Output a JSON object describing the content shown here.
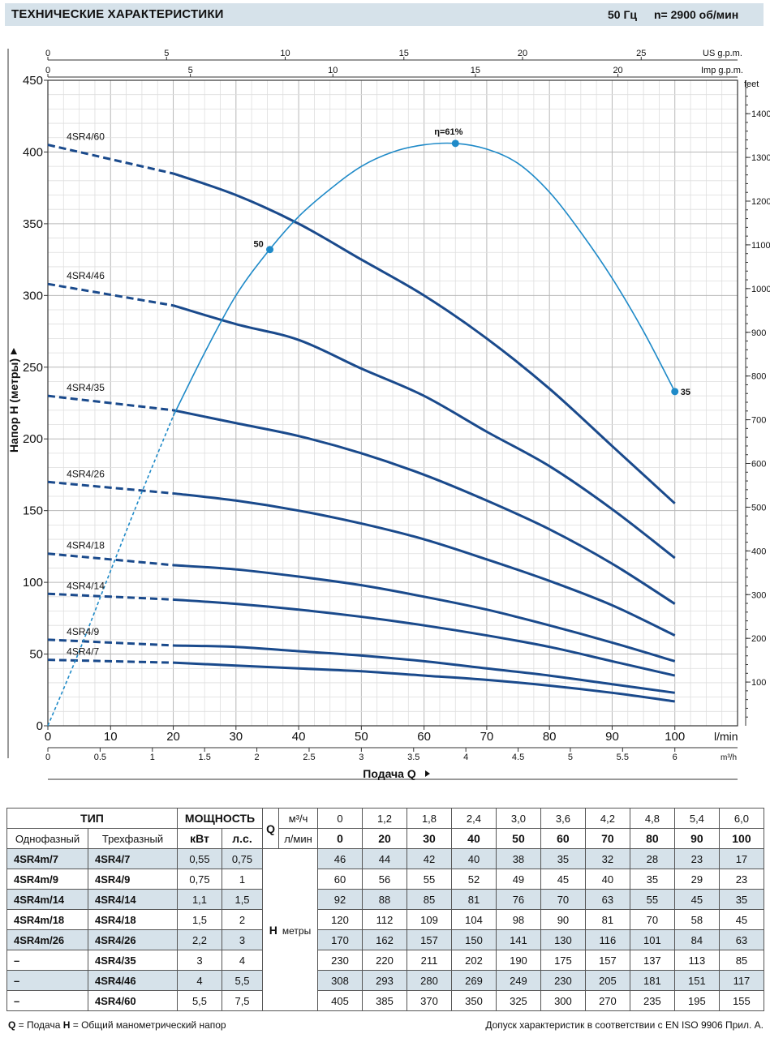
{
  "header": {
    "title": "ТЕХНИЧЕСКИЕ ХАРАКТЕРИСТИКИ",
    "frequency": "50 Гц",
    "speed": "n= 2900 об/мин"
  },
  "chart_data": {
    "type": "line",
    "xlabel": "Подача Q",
    "ylabel": "Напор H (метры)",
    "x_unit": "l/min",
    "x_unit_m3h": "m³/h",
    "right_unit": "feet",
    "us_unit": "US g.p.m.",
    "imp_unit": "Imp g.p.m.",
    "xlim": [
      0,
      110
    ],
    "ylim": [
      0,
      450
    ],
    "x_ticks": [
      0,
      10,
      20,
      30,
      40,
      50,
      60,
      70,
      80,
      90,
      100
    ],
    "y_ticks": [
      0,
      50,
      100,
      150,
      200,
      250,
      300,
      350,
      400,
      450
    ],
    "m3h_ticks": [
      "0",
      "0.5",
      "1",
      "1.5",
      "2",
      "2.5",
      "3",
      "3.5",
      "4",
      "4.5",
      "5",
      "5.5",
      "6"
    ],
    "feet_ticks": [
      "100",
      "200",
      "300",
      "400",
      "500",
      "600",
      "700",
      "800",
      "900",
      "1000",
      "1100",
      "1200",
      "1300",
      "1400"
    ],
    "us_ticks": [
      "0",
      "5",
      "10",
      "15",
      "20",
      "25"
    ],
    "imp_ticks": [
      "0",
      "5",
      "10",
      "15",
      "20"
    ],
    "x": [
      0,
      20,
      30,
      40,
      50,
      60,
      70,
      80,
      90,
      100
    ],
    "series": [
      {
        "name": "4SR4/60",
        "values": [
          405,
          385,
          370,
          350,
          325,
          300,
          270,
          235,
          195,
          155
        ]
      },
      {
        "name": "4SR4/46",
        "values": [
          308,
          293,
          280,
          269,
          249,
          230,
          205,
          181,
          151,
          117
        ]
      },
      {
        "name": "4SR4/35",
        "values": [
          230,
          220,
          211,
          202,
          190,
          175,
          157,
          137,
          113,
          85
        ]
      },
      {
        "name": "4SR4/26",
        "values": [
          170,
          162,
          157,
          150,
          141,
          130,
          116,
          101,
          84,
          63
        ]
      },
      {
        "name": "4SR4/18",
        "values": [
          120,
          112,
          109,
          104,
          98,
          90,
          81,
          70,
          58,
          45
        ]
      },
      {
        "name": "4SR4/14",
        "values": [
          92,
          88,
          85,
          81,
          76,
          70,
          63,
          55,
          45,
          35
        ]
      },
      {
        "name": "4SR4/9",
        "values": [
          60,
          56,
          55,
          52,
          49,
          45,
          40,
          35,
          29,
          23
        ]
      },
      {
        "name": "4SR4/7",
        "values": [
          46,
          44,
          42,
          40,
          38,
          35,
          32,
          28,
          23,
          17
        ]
      }
    ],
    "efficiency": {
      "labels": {
        "peak": "η=61%",
        "left": "50",
        "right": "35"
      },
      "markers": [
        {
          "x": 35.4,
          "y": 332
        },
        {
          "x": 65,
          "y": 406
        },
        {
          "x": 100,
          "y": 233
        }
      ],
      "curve_x": [
        0,
        5,
        10,
        15,
        20,
        25,
        30,
        35,
        40,
        45,
        50,
        55,
        60,
        65,
        70,
        75,
        80,
        85,
        90,
        95,
        100
      ],
      "curve_y": [
        0,
        52,
        108,
        163,
        216,
        260,
        300,
        330,
        355,
        374,
        390,
        400,
        405,
        406,
        402,
        392,
        372,
        344,
        312,
        275,
        233
      ]
    }
  },
  "table": {
    "type_label": "ТИП",
    "power_label": "МОЩНОСТЬ",
    "single_phase_label": "Однофазный",
    "three_phase_label": "Трехфазный",
    "kw_label": "кВт",
    "hp_label": "л.с.",
    "q_label": "Q",
    "q_m3h_label": "м³/ч",
    "q_lmin_label": "л/мин",
    "h_label": "H",
    "h_unit_label": "метры",
    "q_m3h": [
      "0",
      "1,2",
      "1,8",
      "2,4",
      "3,0",
      "3,6",
      "4,2",
      "4,8",
      "5,4",
      "6,0"
    ],
    "q_lmin": [
      "0",
      "20",
      "30",
      "40",
      "50",
      "60",
      "70",
      "80",
      "90",
      "100"
    ],
    "rows": [
      {
        "single": "4SR4m/7",
        "three": "4SR4/7",
        "kw": "0,55",
        "hp": "0,75",
        "h": [
          "46",
          "44",
          "42",
          "40",
          "38",
          "35",
          "32",
          "28",
          "23",
          "17"
        ]
      },
      {
        "single": "4SR4m/9",
        "three": "4SR4/9",
        "kw": "0,75",
        "hp": "1",
        "h": [
          "60",
          "56",
          "55",
          "52",
          "49",
          "45",
          "40",
          "35",
          "29",
          "23"
        ]
      },
      {
        "single": "4SR4m/14",
        "three": "4SR4/14",
        "kw": "1,1",
        "hp": "1,5",
        "h": [
          "92",
          "88",
          "85",
          "81",
          "76",
          "70",
          "63",
          "55",
          "45",
          "35"
        ]
      },
      {
        "single": "4SR4m/18",
        "three": "4SR4/18",
        "kw": "1,5",
        "hp": "2",
        "h": [
          "120",
          "112",
          "109",
          "104",
          "98",
          "90",
          "81",
          "70",
          "58",
          "45"
        ]
      },
      {
        "single": "4SR4m/26",
        "three": "4SR4/26",
        "kw": "2,2",
        "hp": "3",
        "h": [
          "170",
          "162",
          "157",
          "150",
          "141",
          "130",
          "116",
          "101",
          "84",
          "63"
        ]
      },
      {
        "single": "–",
        "three": "4SR4/35",
        "kw": "3",
        "hp": "4",
        "h": [
          "230",
          "220",
          "211",
          "202",
          "190",
          "175",
          "157",
          "137",
          "113",
          "85"
        ]
      },
      {
        "single": "–",
        "three": "4SR4/46",
        "kw": "4",
        "hp": "5,5",
        "h": [
          "308",
          "293",
          "280",
          "269",
          "249",
          "230",
          "205",
          "181",
          "151",
          "117"
        ]
      },
      {
        "single": "–",
        "three": "4SR4/60",
        "kw": "5,5",
        "hp": "7,5",
        "h": [
          "405",
          "385",
          "370",
          "350",
          "325",
          "300",
          "270",
          "235",
          "195",
          "155"
        ]
      }
    ]
  },
  "footer": {
    "left_q": "Q",
    "left_q_text": " = Подача  ",
    "left_h": "H",
    "left_h_text": " = Общий манометрический напор",
    "right": "Допуск характеристик в соответствии с EN ISO 9906 Прил. А."
  },
  "colors": {
    "curve": "#1a4a8c",
    "efficiency": "#1f8ac8",
    "grid": "#c8c8c8",
    "header_bg": "#d6e2ea"
  }
}
